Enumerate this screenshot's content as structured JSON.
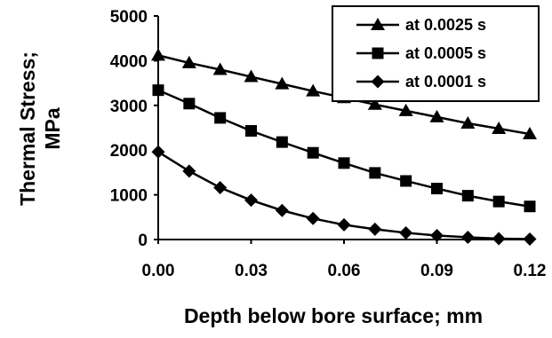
{
  "chart_data": {
    "type": "line",
    "title": "",
    "xlabel": "Depth below bore surface;   mm",
    "ylabel_lines": [
      "Thermal Stress;",
      "MPa"
    ],
    "xlim": [
      0,
      0.12
    ],
    "ylim": [
      0,
      5000
    ],
    "x_ticks": [
      "0.00",
      "0.03",
      "0.06",
      "0.09",
      "0.12"
    ],
    "x_tick_values": [
      0,
      0.03,
      0.06,
      0.09,
      0.12
    ],
    "y_ticks": [
      "0",
      "1000",
      "2000",
      "3000",
      "4000",
      "5000"
    ],
    "y_tick_values": [
      0,
      1000,
      2000,
      3000,
      4000,
      5000
    ],
    "grid": false,
    "legend_position": "top-right",
    "x": [
      0,
      0.01,
      0.02,
      0.03,
      0.04,
      0.05,
      0.06,
      0.07,
      0.08,
      0.09,
      0.1,
      0.11,
      0.12
    ],
    "series": [
      {
        "name": "at 0.0025 s",
        "marker": "triangle",
        "values": [
          4120,
          3950,
          3800,
          3640,
          3480,
          3320,
          3170,
          3020,
          2880,
          2740,
          2600,
          2480,
          2360
        ]
      },
      {
        "name": "at 0.0005 s",
        "marker": "square",
        "values": [
          3340,
          3040,
          2720,
          2430,
          2180,
          1940,
          1710,
          1490,
          1310,
          1140,
          980,
          850,
          740
        ]
      },
      {
        "name": "at 0.0001 s",
        "marker": "diamond",
        "values": [
          1960,
          1530,
          1160,
          880,
          650,
          470,
          330,
          230,
          150,
          90,
          50,
          20,
          10
        ]
      }
    ]
  }
}
